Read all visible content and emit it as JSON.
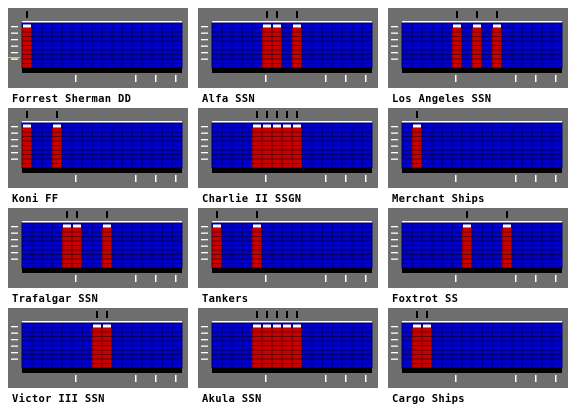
{
  "colors": {
    "panel": "#6e6e6e",
    "grid_fill": "#0000c8",
    "grid_line": "#000064",
    "contact_fill": "#c80000",
    "contact_line": "#640000",
    "top_band": "#ffffff",
    "base": "#000000",
    "tick": "#ffffff",
    "marker": "#000000",
    "axis_line": "#ffbf00"
  },
  "grid": {
    "columns": 16,
    "rows": 10
  },
  "contacts": [
    {
      "label": "Forrest Sherman DD",
      "columns": [
        0
      ],
      "level": 0.9,
      "axis_mark": true
    },
    {
      "label": "Alfa SSN",
      "columns": [
        5,
        6,
        8
      ],
      "level": 0.9
    },
    {
      "label": "Los Angeles SSN",
      "columns": [
        5,
        7,
        9
      ],
      "level": 0.9
    },
    {
      "label": "Koni FF",
      "columns": [
        0,
        3
      ],
      "level": 0.9
    },
    {
      "label": "Charlie II SSGN",
      "columns": [
        4,
        5,
        6,
        7,
        8
      ],
      "level": 0.9
    },
    {
      "label": "Merchant Ships",
      "columns": [
        1
      ],
      "level": 0.9
    },
    {
      "label": "Trafalgar SSN",
      "columns": [
        4,
        5,
        8
      ],
      "level": 0.9
    },
    {
      "label": "Tankers",
      "columns": [
        0,
        4
      ],
      "level": 0.9
    },
    {
      "label": "Foxtrot SS",
      "columns": [
        6,
        10
      ],
      "level": 0.9
    },
    {
      "label": "Victor III SSN",
      "columns": [
        7,
        8
      ],
      "level": 0.9
    },
    {
      "label": "Akula SSN",
      "columns": [
        4,
        5,
        6,
        7,
        8
      ],
      "level": 0.9
    },
    {
      "label": "Cargo Ships",
      "columns": [
        1,
        2
      ],
      "level": 0.9
    }
  ]
}
